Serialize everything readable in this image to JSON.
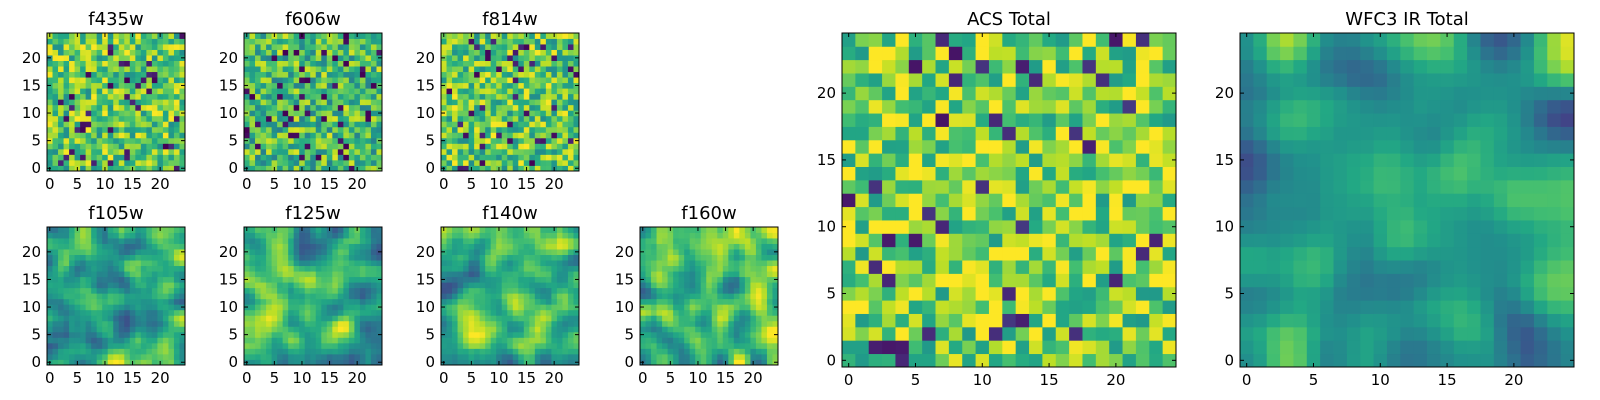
{
  "colors": {
    "background": "#ffffff",
    "axis": "#000000"
  },
  "chart_data": [
    {
      "type": "heatmap",
      "title": "f435w",
      "size": 25,
      "seed": 11,
      "smooth": 0,
      "bias": 0.0,
      "xticks": [
        0,
        5,
        10,
        15,
        20
      ],
      "yticks": [
        0,
        5,
        10,
        15,
        20
      ],
      "colormap": "viridis",
      "grid": false
    },
    {
      "type": "heatmap",
      "title": "f606w",
      "size": 25,
      "seed": 23,
      "smooth": 0,
      "bias": -0.05,
      "xticks": [
        0,
        5,
        10,
        15,
        20
      ],
      "yticks": [
        0,
        5,
        10,
        15,
        20
      ],
      "colormap": "viridis",
      "grid": false
    },
    {
      "type": "heatmap",
      "title": "f814w",
      "size": 25,
      "seed": 37,
      "smooth": 0,
      "bias": 0.0,
      "xticks": [
        0,
        5,
        10,
        15,
        20
      ],
      "yticks": [
        0,
        5,
        10,
        15,
        20
      ],
      "colormap": "viridis",
      "grid": false
    },
    {
      "type": "heatmap",
      "title": "f105w",
      "size": 25,
      "seed": 41,
      "smooth": 2,
      "bias": 0.0,
      "xticks": [
        0,
        5,
        10,
        15,
        20
      ],
      "yticks": [
        0,
        5,
        10,
        15,
        20
      ],
      "colormap": "viridis",
      "grid": false
    },
    {
      "type": "heatmap",
      "title": "f125w",
      "size": 25,
      "seed": 53,
      "smooth": 2,
      "bias": 0.0,
      "xticks": [
        0,
        5,
        10,
        15,
        20
      ],
      "yticks": [
        0,
        5,
        10,
        15,
        20
      ],
      "colormap": "viridis",
      "grid": false
    },
    {
      "type": "heatmap",
      "title": "f140w",
      "size": 25,
      "seed": 67,
      "smooth": 2,
      "bias": 0.0,
      "xticks": [
        0,
        5,
        10,
        15,
        20
      ],
      "yticks": [
        0,
        5,
        10,
        15,
        20
      ],
      "colormap": "viridis",
      "grid": false
    },
    {
      "type": "heatmap",
      "title": "f160w",
      "size": 25,
      "seed": 79,
      "smooth": 2,
      "bias": 0.05,
      "xticks": [
        0,
        5,
        10,
        15,
        20
      ],
      "yticks": [
        0,
        5,
        10,
        15,
        20
      ],
      "colormap": "viridis",
      "grid": false
    },
    {
      "type": "heatmap",
      "title": "ACS Total",
      "size": 25,
      "seed": 97,
      "smooth": 0,
      "bias": 0.05,
      "xticks": [
        0,
        5,
        10,
        15,
        20
      ],
      "yticks": [
        0,
        5,
        10,
        15,
        20
      ],
      "colormap": "viridis",
      "grid": false
    },
    {
      "type": "heatmap",
      "title": "WFC3 IR Total",
      "size": 25,
      "seed": 113,
      "smooth": 3,
      "bias": -0.05,
      "xticks": [
        0,
        5,
        10,
        15,
        20
      ],
      "yticks": [
        0,
        5,
        10,
        15,
        20
      ],
      "colormap": "viridis",
      "grid": false
    }
  ]
}
